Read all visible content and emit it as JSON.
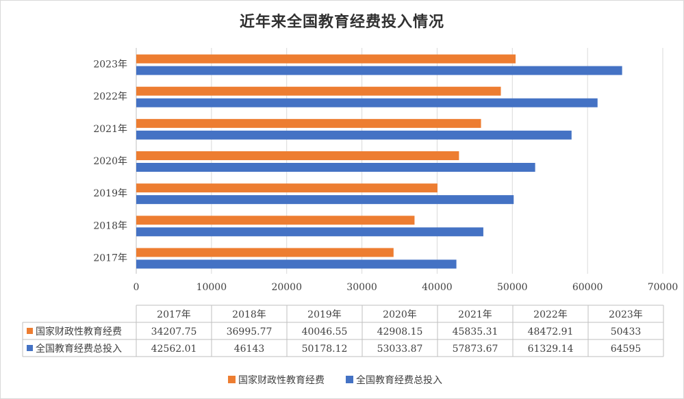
{
  "chart_data": {
    "type": "bar",
    "orientation": "horizontal",
    "title": "近年来全国教育经费投入情况",
    "categories": [
      "2017年",
      "2018年",
      "2019年",
      "2020年",
      "2021年",
      "2022年",
      "2023年"
    ],
    "series": [
      {
        "name": "国家财政性教育经费",
        "color": "#ed7d31",
        "values": [
          34207.75,
          36995.77,
          40046.55,
          42908.15,
          45835.31,
          48472.91,
          50433
        ],
        "labels": [
          "34207.75",
          "36995.77",
          "40046.55",
          "42908.15",
          "45835.31",
          "48472.91",
          "50433"
        ]
      },
      {
        "name": "全国教育经费总投入",
        "color": "#4472c4",
        "values": [
          42562.01,
          46143,
          50178.12,
          53033.87,
          57873.67,
          61329.14,
          64595
        ],
        "labels": [
          "42562.01",
          "46143",
          "50178.12",
          "53033.87",
          "57873.67",
          "61329.14",
          "64595"
        ]
      }
    ],
    "xlim": [
      0,
      70000
    ],
    "xticks": [
      "0",
      "10000",
      "20000",
      "30000",
      "40000",
      "50000",
      "60000",
      "70000"
    ],
    "grid": true,
    "legend": "bottom",
    "data_table": true
  }
}
